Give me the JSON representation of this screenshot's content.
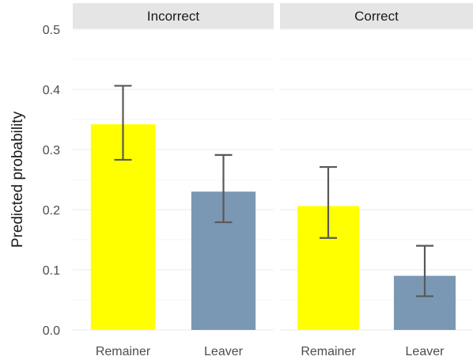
{
  "chart_data": {
    "type": "bar",
    "ylabel": "Predicted probability",
    "ylim": [
      0,
      0.5
    ],
    "yticks": [
      "0.0",
      "0.1",
      "0.2",
      "0.3",
      "0.4",
      "0.5"
    ],
    "categories": [
      "Remainer",
      "Leaver"
    ],
    "colors": {
      "Remainer": "#ffff00",
      "Leaver": "#7a98b4"
    },
    "error_bar_color": "#595959",
    "panel_bg": "#ffffff",
    "strip_bg": "#e5e5e5",
    "grid": true,
    "panels": [
      {
        "title": "Incorrect",
        "values": [
          0.342,
          0.23
        ],
        "lower": [
          0.283,
          0.179
        ],
        "upper": [
          0.406,
          0.291
        ]
      },
      {
        "title": "Correct",
        "values": [
          0.206,
          0.09
        ],
        "lower": [
          0.153,
          0.056
        ],
        "upper": [
          0.271,
          0.14
        ]
      }
    ]
  }
}
